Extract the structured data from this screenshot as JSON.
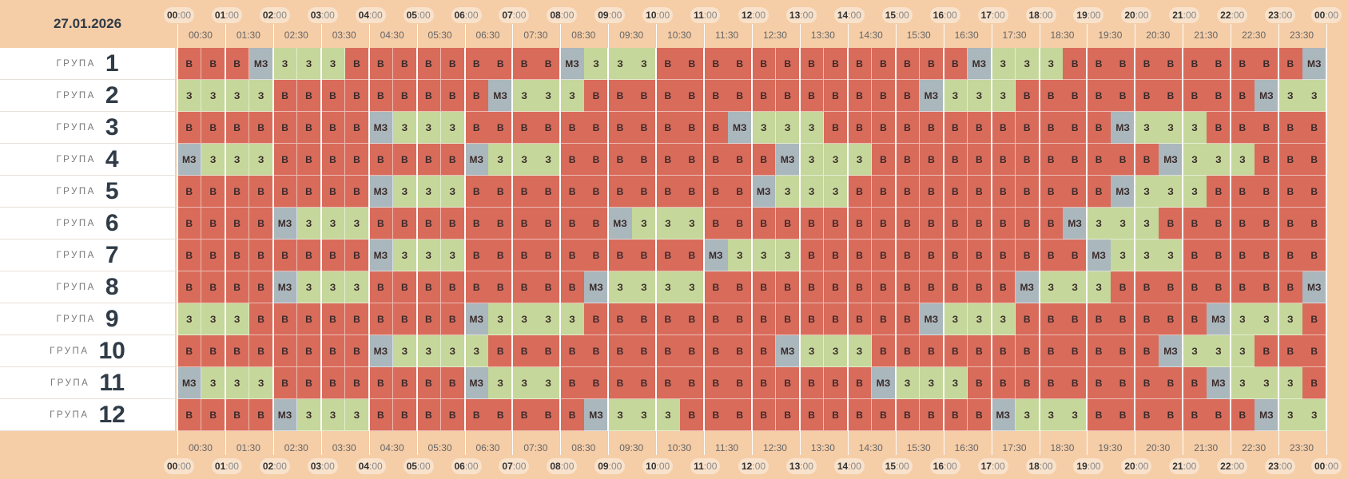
{
  "date": "27.01.2026",
  "group_word": "ГРУПА",
  "state_labels": {
    "v": "В",
    "z": "З",
    "mz": "МЗ"
  },
  "colors": {
    "v": "#d96b5b",
    "z": "#c5d79a",
    "mz": "#aab7bd",
    "header_bg": "#f5cda7",
    "pill_bg": "#f9e2cb"
  },
  "hour_labels": [
    {
      "hh": "00",
      "mm": ":00"
    },
    {
      "hh": "01",
      "mm": ":00"
    },
    {
      "hh": "02",
      "mm": ":00"
    },
    {
      "hh": "03",
      "mm": ":00"
    },
    {
      "hh": "04",
      "mm": ":00"
    },
    {
      "hh": "05",
      "mm": ":00"
    },
    {
      "hh": "06",
      "mm": ":00"
    },
    {
      "hh": "07",
      "mm": ":00"
    },
    {
      "hh": "08",
      "mm": ":00"
    },
    {
      "hh": "09",
      "mm": ":00"
    },
    {
      "hh": "10",
      "mm": ":00"
    },
    {
      "hh": "11",
      "mm": ":00"
    },
    {
      "hh": "12",
      "mm": ":00"
    },
    {
      "hh": "13",
      "mm": ":00"
    },
    {
      "hh": "14",
      "mm": ":00"
    },
    {
      "hh": "15",
      "mm": ":00"
    },
    {
      "hh": "16",
      "mm": ":00"
    },
    {
      "hh": "17",
      "mm": ":00"
    },
    {
      "hh": "18",
      "mm": ":00"
    },
    {
      "hh": "19",
      "mm": ":00"
    },
    {
      "hh": "20",
      "mm": ":00"
    },
    {
      "hh": "21",
      "mm": ":00"
    },
    {
      "hh": "22",
      "mm": ":00"
    },
    {
      "hh": "23",
      "mm": ":00"
    },
    {
      "hh": "00",
      "mm": ":00"
    }
  ],
  "half_hour_labels": [
    "00:30",
    "01:30",
    "02:30",
    "03:30",
    "04:30",
    "05:30",
    "06:30",
    "07:30",
    "08:30",
    "09:30",
    "10:30",
    "11:30",
    "12:30",
    "13:30",
    "14:30",
    "15:30",
    "16:30",
    "17:30",
    "18:30",
    "19:30",
    "20:30",
    "21:30",
    "22:30",
    "23:30"
  ],
  "groups": [
    {
      "number": "1",
      "slots": "VVVMZZZVVVVVVVVVMZZZVVVVVVVVVVVVVMZZZVVVVVVVVVVM"
    },
    {
      "number": "2",
      "slots": "ZZZZVVVVVVVVVMZZZVVVVVVVVVVVVVVMZZZVVVVVVVVVVMZZ"
    },
    {
      "number": "3",
      "slots": "VVVVVVVVMZZZVVVVVVVVVVVMZZZVVVVVVVVVVVVMZZZVVVVV"
    },
    {
      "number": "4",
      "slots": "MZZZVVVVVVVVMZZZVVVVVVVVVMZZZVVVVVVVVVVVVMZZZVVV"
    },
    {
      "number": "5",
      "slots": "VVVVVVVVMZZZVVVVVVVVVVVVMZZZVVVVVVVVVVVMZZZVVVVV"
    },
    {
      "number": "6",
      "slots": "VVVVMZZZVVVVVVVVVVMZZZVVVVVVVVVVVVVVVMZZZVVVVVVV"
    },
    {
      "number": "7",
      "slots": "VVVVVVVVMZZZVVVVVVVVVVMZZZVVVVVVVVVVVVMZZZVVVVVV"
    },
    {
      "number": "8",
      "slots": "VVVVMZZZVVVVVVVVVMZZZZVVVVVVVVVVVVVMZZZVVVVVVVVM"
    },
    {
      "number": "9",
      "slots": "ZZZVVVVVVVVVMZZZZVVVVVVVVVVVVVVMZZZVVVVVVVVMZZZV"
    },
    {
      "number": "10",
      "slots": "VVVVVVVVMZZZZVVVVVVVVVVVVMZZZVVVVVVVVVVVVMZZZVVV"
    },
    {
      "number": "11",
      "slots": "MZZZVVVVVVVVMZZZVVVVVVVVVVVVVMZZZVVVVVVVVVVMZZZV"
    },
    {
      "number": "12",
      "slots": "VVVVMZZZVVVVVVVVVMZZZVVVVVVVVVVVVVMZZZVVVVVVVMZZ"
    }
  ]
}
